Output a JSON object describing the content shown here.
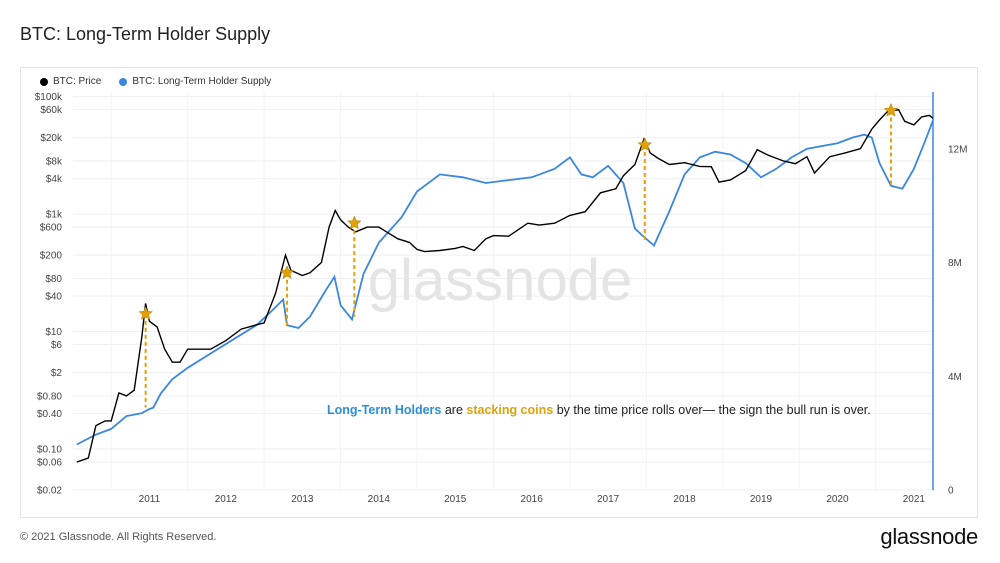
{
  "title": "BTC: Long-Term Holder Supply",
  "footer": {
    "copyright": "© 2021 Glassnode. All Rights Reserved.",
    "logo": "glassnode"
  },
  "watermark": "glassnode",
  "annotation": {
    "part1": "Long-Term Holders",
    "part2": " are ",
    "part3": "stacking coins",
    "part4": " by the time price rolls over— the sign the bull run is over."
  },
  "colors": {
    "price": "#000000",
    "lth": "#3b87e0",
    "highlight": "#e0a10b",
    "blue_text": "#2a8fd8"
  },
  "chart_data": {
    "type": "line",
    "title": "BTC: Long-Term Holder Supply",
    "legend_position": "top-left",
    "grid": true,
    "x_axis": {
      "ticks": [
        "2011",
        "2012",
        "2013",
        "2014",
        "2015",
        "2016",
        "2017",
        "2018",
        "2019",
        "2020",
        "2021"
      ],
      "range": [
        2010.5,
        2021.75
      ]
    },
    "y_left": {
      "scale": "log",
      "ticks": [
        "$100k",
        "$60k",
        "$20k",
        "$8k",
        "$4k",
        "$1k",
        "$600",
        "$200",
        "$80",
        "$40",
        "$10",
        "$6",
        "$2",
        "$0.80",
        "$0.40",
        "$0.10",
        "$0.06",
        "$0.02"
      ],
      "tick_values": [
        100000,
        60000,
        20000,
        8000,
        4000,
        1000,
        600,
        200,
        80,
        40,
        10,
        6,
        2,
        0.8,
        0.4,
        0.1,
        0.06,
        0.02
      ],
      "range": [
        0.02,
        120000
      ]
    },
    "y_right": {
      "ticks": [
        "12M",
        "8M",
        "4M",
        "0"
      ],
      "tick_values": [
        12000000,
        8000000,
        4000000,
        0
      ],
      "range": [
        0,
        14000000
      ]
    },
    "series": [
      {
        "name": "BTC: Price",
        "axis": "left",
        "points": [
          [
            2010.55,
            0.06
          ],
          [
            2010.7,
            0.07
          ],
          [
            2010.8,
            0.25
          ],
          [
            2010.92,
            0.3
          ],
          [
            2011.0,
            0.3
          ],
          [
            2011.1,
            0.9
          ],
          [
            2011.2,
            0.8
          ],
          [
            2011.3,
            1.0
          ],
          [
            2011.4,
            8
          ],
          [
            2011.45,
            30
          ],
          [
            2011.5,
            15
          ],
          [
            2011.6,
            12
          ],
          [
            2011.7,
            5
          ],
          [
            2011.8,
            3
          ],
          [
            2011.9,
            3
          ],
          [
            2012.0,
            5
          ],
          [
            2012.15,
            5
          ],
          [
            2012.3,
            5
          ],
          [
            2012.5,
            7
          ],
          [
            2012.7,
            11
          ],
          [
            2012.9,
            13
          ],
          [
            2013.0,
            14
          ],
          [
            2013.15,
            45
          ],
          [
            2013.28,
            200
          ],
          [
            2013.35,
            110
          ],
          [
            2013.5,
            90
          ],
          [
            2013.6,
            100
          ],
          [
            2013.75,
            150
          ],
          [
            2013.85,
            600
          ],
          [
            2013.93,
            1150
          ],
          [
            2014.0,
            800
          ],
          [
            2014.1,
            600
          ],
          [
            2014.2,
            500
          ],
          [
            2014.35,
            600
          ],
          [
            2014.5,
            600
          ],
          [
            2014.6,
            500
          ],
          [
            2014.75,
            380
          ],
          [
            2014.9,
            330
          ],
          [
            2015.0,
            250
          ],
          [
            2015.1,
            230
          ],
          [
            2015.3,
            240
          ],
          [
            2015.5,
            260
          ],
          [
            2015.6,
            280
          ],
          [
            2015.75,
            240
          ],
          [
            2015.9,
            380
          ],
          [
            2016.0,
            430
          ],
          [
            2016.2,
            420
          ],
          [
            2016.45,
            700
          ],
          [
            2016.6,
            650
          ],
          [
            2016.8,
            700
          ],
          [
            2017.0,
            950
          ],
          [
            2017.2,
            1100
          ],
          [
            2017.4,
            2300
          ],
          [
            2017.6,
            2700
          ],
          [
            2017.7,
            4500
          ],
          [
            2017.85,
            7000
          ],
          [
            2017.97,
            19000
          ],
          [
            2018.05,
            11000
          ],
          [
            2018.15,
            9000
          ],
          [
            2018.3,
            7000
          ],
          [
            2018.5,
            7500
          ],
          [
            2018.7,
            6500
          ],
          [
            2018.85,
            6400
          ],
          [
            2018.95,
            3500
          ],
          [
            2019.1,
            3800
          ],
          [
            2019.3,
            5500
          ],
          [
            2019.45,
            12500
          ],
          [
            2019.6,
            10000
          ],
          [
            2019.8,
            8000
          ],
          [
            2019.95,
            7200
          ],
          [
            2020.1,
            9500
          ],
          [
            2020.2,
            5000
          ],
          [
            2020.4,
            9500
          ],
          [
            2020.6,
            11000
          ],
          [
            2020.8,
            13000
          ],
          [
            2020.95,
            28000
          ],
          [
            2021.05,
            40000
          ],
          [
            2021.15,
            55000
          ],
          [
            2021.3,
            60000
          ],
          [
            2021.38,
            38000
          ],
          [
            2021.5,
            33000
          ],
          [
            2021.6,
            45000
          ],
          [
            2021.7,
            48000
          ],
          [
            2021.75,
            43000
          ]
        ]
      },
      {
        "name": "BTC: Long-Term Holder Supply",
        "axis": "right",
        "points": [
          [
            2010.55,
            1600000
          ],
          [
            2010.8,
            1950000
          ],
          [
            2011.0,
            2150000
          ],
          [
            2011.2,
            2600000
          ],
          [
            2011.4,
            2700000
          ],
          [
            2011.5,
            2850000
          ],
          [
            2011.55,
            2900000
          ],
          [
            2011.65,
            3400000
          ],
          [
            2011.8,
            3900000
          ],
          [
            2012.0,
            4300000
          ],
          [
            2012.3,
            4800000
          ],
          [
            2012.6,
            5300000
          ],
          [
            2012.9,
            5800000
          ],
          [
            2013.1,
            6300000
          ],
          [
            2013.25,
            6700000
          ],
          [
            2013.3,
            5800000
          ],
          [
            2013.45,
            5700000
          ],
          [
            2013.6,
            6100000
          ],
          [
            2013.8,
            7000000
          ],
          [
            2013.92,
            7500000
          ],
          [
            2014.0,
            6500000
          ],
          [
            2014.15,
            6000000
          ],
          [
            2014.3,
            7600000
          ],
          [
            2014.5,
            8700000
          ],
          [
            2014.8,
            9600000
          ],
          [
            2015.0,
            10500000
          ],
          [
            2015.3,
            11100000
          ],
          [
            2015.6,
            11000000
          ],
          [
            2015.9,
            10800000
          ],
          [
            2016.2,
            10900000
          ],
          [
            2016.5,
            11000000
          ],
          [
            2016.8,
            11300000
          ],
          [
            2017.0,
            11700000
          ],
          [
            2017.15,
            11100000
          ],
          [
            2017.3,
            11000000
          ],
          [
            2017.5,
            11400000
          ],
          [
            2017.7,
            10800000
          ],
          [
            2017.85,
            9200000
          ],
          [
            2017.97,
            8900000
          ],
          [
            2018.1,
            8600000
          ],
          [
            2018.3,
            9800000
          ],
          [
            2018.5,
            11100000
          ],
          [
            2018.7,
            11700000
          ],
          [
            2018.9,
            11900000
          ],
          [
            2019.1,
            11800000
          ],
          [
            2019.3,
            11500000
          ],
          [
            2019.5,
            11000000
          ],
          [
            2019.7,
            11300000
          ],
          [
            2019.9,
            11700000
          ],
          [
            2020.1,
            12000000
          ],
          [
            2020.3,
            12100000
          ],
          [
            2020.5,
            12200000
          ],
          [
            2020.7,
            12400000
          ],
          [
            2020.85,
            12500000
          ],
          [
            2020.95,
            12400000
          ],
          [
            2021.05,
            11500000
          ],
          [
            2021.2,
            10700000
          ],
          [
            2021.35,
            10600000
          ],
          [
            2021.5,
            11300000
          ],
          [
            2021.65,
            12300000
          ],
          [
            2021.75,
            13000000
          ]
        ]
      }
    ],
    "highlights": [
      {
        "date": 2011.45,
        "price": 20,
        "lth": 2900000
      },
      {
        "date": 2013.3,
        "price": 100,
        "lth": 5800000
      },
      {
        "date": 2014.18,
        "price": 700,
        "lth": 6100000
      },
      {
        "date": 2017.98,
        "price": 15000,
        "lth": 8800000
      },
      {
        "date": 2021.2,
        "price": 58000,
        "lth": 10700000
      }
    ]
  }
}
